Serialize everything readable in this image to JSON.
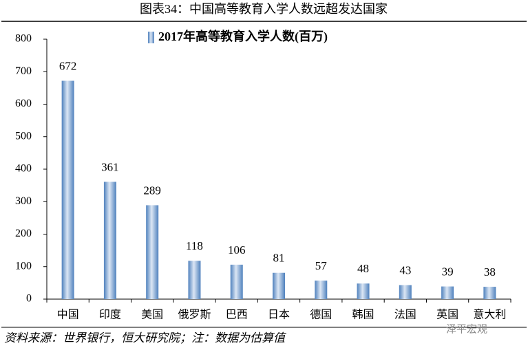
{
  "chart_data": {
    "type": "bar",
    "title": "图表34：中国高等教育入学人数远超发达国家",
    "series": [
      {
        "name": "2017年高等教育入学人数(百万)",
        "color": "#4f81bd",
        "values": [
          672,
          361,
          289,
          118,
          106,
          81,
          57,
          48,
          43,
          39,
          38
        ]
      }
    ],
    "categories": [
      "中国",
      "印度",
      "美国",
      "俄罗斯",
      "巴西",
      "日本",
      "德国",
      "韩国",
      "法国",
      "英国",
      "意大利"
    ],
    "ylim": [
      0,
      800
    ],
    "yticks": [
      0,
      100,
      200,
      300,
      400,
      500,
      600,
      700,
      800
    ],
    "grid": false,
    "legend": "top",
    "source": "资料来源：世界银行，恒大研究院；注：数据为估算值",
    "watermark": "泽平宏观"
  }
}
